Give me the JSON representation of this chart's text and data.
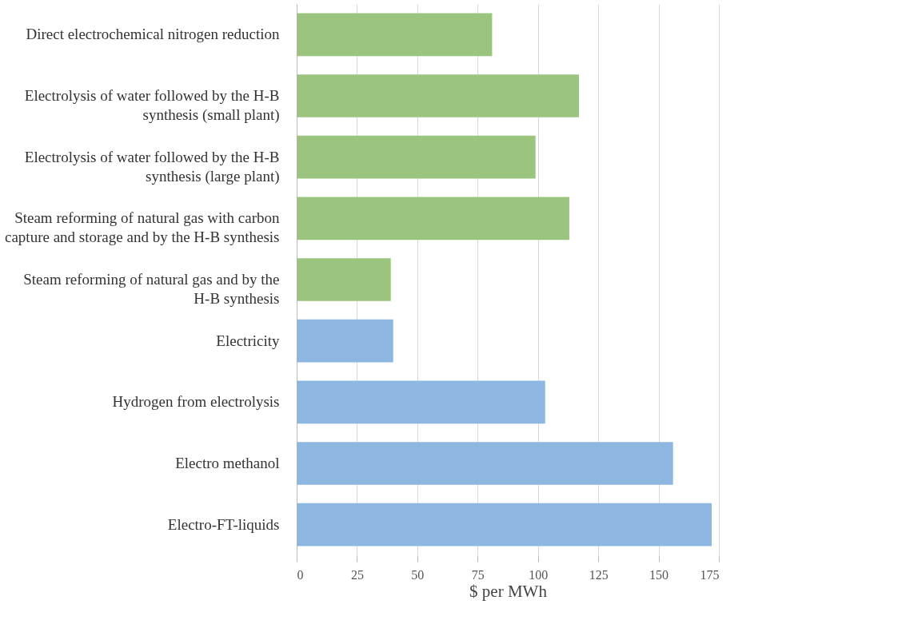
{
  "chart_data": {
    "type": "bar",
    "orientation": "horizontal",
    "xlabel": "$ per MWh",
    "categories": [
      "Direct electrochemical nitrogen reduction",
      "Electrolysis of water followed by the H-B\nsynthesis (small plant)",
      "Electrolysis of water followed by the H-B\nsynthesis (large plant)",
      "Steam reforming of natural gas with carbon\ncapture and storage and by the H-B synthesis",
      "Steam reforming of natural gas and by the\nH-B synthesis",
      "Electricity",
      "Hydrogen from electrolysis",
      "Electro methanol",
      "Electro-FT-liquids"
    ],
    "values": [
      81,
      117,
      99,
      113,
      39,
      40,
      103,
      156,
      172
    ],
    "colors": [
      "#9bc57e",
      "#9bc57e",
      "#9bc57e",
      "#9bc57e",
      "#9bc57e",
      "#8db7e1",
      "#8db7e1",
      "#8db7e1",
      "#8db7e1"
    ],
    "xlim": [
      0,
      175
    ],
    "xticks": [
      0,
      25,
      50,
      75,
      100,
      125,
      150,
      175
    ],
    "grid": "x"
  }
}
